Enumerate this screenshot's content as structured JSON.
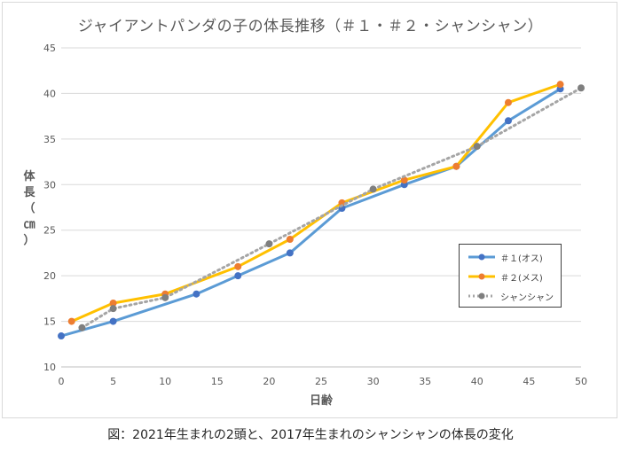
{
  "caption": "図：2021年生まれの2頭と、2017年生まれのシャンシャンの体長の変化",
  "chart_data": {
    "type": "line",
    "title": "ジャイアントパンダの子の体長推移（＃１・＃２・シャンシャン）",
    "xlabel": "日齢",
    "ylabel": "体長（㎝）",
    "xlim": [
      0,
      50
    ],
    "ylim": [
      10,
      45
    ],
    "x_ticks": [
      0,
      5,
      10,
      15,
      20,
      25,
      30,
      35,
      40,
      45,
      50
    ],
    "y_ticks": [
      10,
      15,
      20,
      25,
      30,
      35,
      40,
      45
    ],
    "grid": "horizontal",
    "legend_position": "right",
    "series": [
      {
        "name": "＃１(オス)",
        "color": "#5b9bd5",
        "marker_color": "#4472c4",
        "style": "solid",
        "x": [
          0,
          5,
          13,
          17,
          22,
          27,
          33,
          38,
          43,
          48
        ],
        "y": [
          13.4,
          15,
          18,
          20,
          22.5,
          27.4,
          30,
          32,
          37,
          40.5
        ]
      },
      {
        "name": "＃２(メス)",
        "color": "#ffc000",
        "marker_color": "#ed7d31",
        "style": "solid",
        "x": [
          1,
          5,
          10,
          17,
          22,
          27,
          33,
          38,
          43,
          48
        ],
        "y": [
          15,
          17,
          18,
          21,
          24,
          28,
          30.5,
          32,
          39,
          41
        ]
      },
      {
        "name": "シャンシャン",
        "color": "#a5a5a5",
        "marker_color": "#7f7f7f",
        "style": "dotted",
        "x": [
          2,
          5,
          10,
          20,
          30,
          40,
          50
        ],
        "y": [
          14.3,
          16.4,
          17.6,
          23.5,
          29.5,
          34.2,
          40.6
        ]
      }
    ]
  }
}
